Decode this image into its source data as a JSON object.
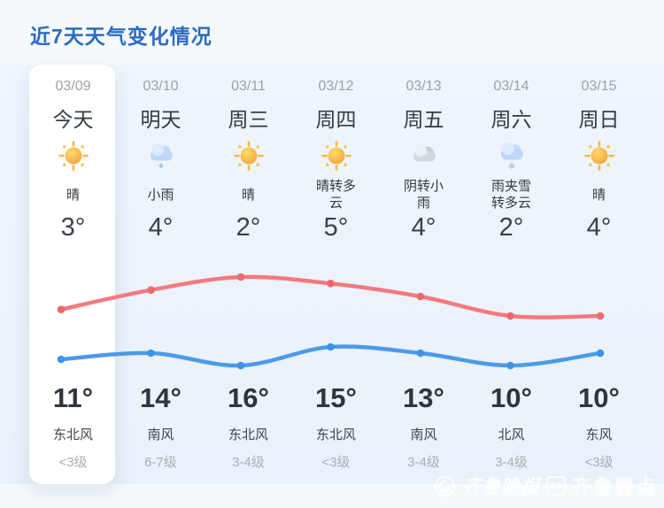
{
  "page": {
    "title": "近7天天气变化情况"
  },
  "colors": {
    "title": "#2a6bc3",
    "panel_bg": "#ecf3fa",
    "today_bg": "#ffffff",
    "high_line": "#f3797e",
    "high_dot": "#ee686f",
    "low_line": "#4c9ae9",
    "low_dot": "#3d93e8"
  },
  "days": [
    {
      "date": "03/09",
      "label": "今天",
      "icon": "sun-icon",
      "desc": "晴",
      "temp_low": "3°",
      "temp_high": "11°",
      "wind": "东北风",
      "wind_level": "<3级",
      "today": true
    },
    {
      "date": "03/10",
      "label": "明天",
      "icon": "light-rain-icon",
      "desc": "小雨",
      "temp_low": "4°",
      "temp_high": "14°",
      "wind": "南风",
      "wind_level": "6-7级",
      "today": false
    },
    {
      "date": "03/11",
      "label": "周三",
      "icon": "sun-icon",
      "desc": "晴",
      "temp_low": "2°",
      "temp_high": "16°",
      "wind": "东北风",
      "wind_level": "3-4级",
      "today": false
    },
    {
      "date": "03/12",
      "label": "周四",
      "icon": "sun-icon",
      "desc": "晴转多云",
      "temp_low": "5°",
      "temp_high": "15°",
      "wind": "东北风",
      "wind_level": "<3级",
      "today": false
    },
    {
      "date": "03/13",
      "label": "周五",
      "icon": "overcast-icon",
      "desc": "阴转小雨",
      "temp_low": "4°",
      "temp_high": "13°",
      "wind": "南风",
      "wind_level": "3-4级",
      "today": false
    },
    {
      "date": "03/14",
      "label": "周六",
      "icon": "sleet-icon",
      "desc": "雨夹雪转多云",
      "temp_low": "2°",
      "temp_high": "10°",
      "wind": "北风",
      "wind_level": "3-4级",
      "today": false
    },
    {
      "date": "03/15",
      "label": "周日",
      "icon": "sun-icon",
      "desc": "晴",
      "temp_low": "4°",
      "temp_high": "10°",
      "wind": "东风",
      "wind_level": "<3级",
      "today": false
    }
  ],
  "chart_data": {
    "type": "line",
    "categories": [
      "03/09",
      "03/10",
      "03/11",
      "03/12",
      "03/13",
      "03/14",
      "03/15"
    ],
    "series": [
      {
        "name": "high_temp",
        "values": [
          11,
          14,
          16,
          15,
          13,
          10,
          10
        ],
        "color": "#f3797e",
        "dot_color": "#ee686f"
      },
      {
        "name": "low_temp",
        "values": [
          3,
          4,
          2,
          5,
          4,
          2,
          4
        ],
        "color": "#4c9ae9",
        "dot_color": "#3d93e8"
      }
    ],
    "title": "",
    "xlabel": "",
    "ylabel": "",
    "legend": "none",
    "grid": false,
    "value_labels": {
      "low_above_chart": [
        "3°",
        "4°",
        "2°",
        "5°",
        "4°",
        "2°",
        "4°"
      ],
      "high_below_chart": [
        "11°",
        "14°",
        "16°",
        "15°",
        "13°",
        "10°",
        "10°"
      ]
    }
  },
  "watermark": {
    "paper": "齐鲁晚报",
    "badge": "壹点",
    "brand": "齐鲁壹点"
  }
}
